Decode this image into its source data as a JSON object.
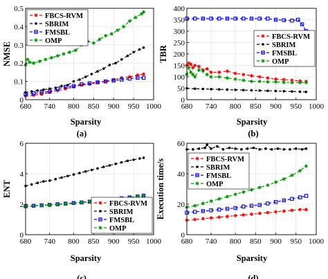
{
  "chart_data": [
    {
      "type": "line",
      "panel_label": "(a)",
      "xlabel": "Sparsity",
      "ylabel": "NMSE",
      "xlim": [
        680,
        1000
      ],
      "ylim": [
        0,
        0.5
      ],
      "xticks": [
        680,
        740,
        800,
        850,
        900,
        950,
        1000
      ],
      "yticks": [
        0,
        0.1,
        0.2,
        0.3,
        0.4,
        0.5
      ],
      "ytick_labels": [
        "0",
        "0.1",
        "0.2",
        "0.3",
        "0.4",
        "0.5"
      ],
      "grid": true,
      "legend": "top-left",
      "series": [
        {
          "name": "FBCS-RVM",
          "color": "#ff0000",
          "dash": "4,3",
          "marker": "star",
          "x": [
            680,
            700,
            720,
            740,
            760,
            780,
            800,
            820,
            840,
            860,
            880,
            900,
            920,
            940,
            960,
            975
          ],
          "values": [
            0.02,
            0.025,
            0.03,
            0.04,
            0.05,
            0.06,
            0.07,
            0.08,
            0.085,
            0.095,
            0.1,
            0.11,
            0.12,
            0.125,
            0.135,
            0.14
          ]
        },
        {
          "name": "SBRIM",
          "color": "#000000",
          "dash": "4,3",
          "marker": "dot",
          "x": [
            680,
            695,
            710,
            725,
            740,
            755,
            770,
            785,
            800,
            815,
            830,
            845,
            860,
            875,
            890,
            905,
            920,
            935,
            950,
            965,
            975
          ],
          "values": [
            0.04,
            0.045,
            0.05,
            0.055,
            0.06,
            0.065,
            0.075,
            0.08,
            0.1,
            0.11,
            0.125,
            0.14,
            0.155,
            0.17,
            0.19,
            0.2,
            0.22,
            0.24,
            0.26,
            0.275,
            0.285
          ]
        },
        {
          "name": "FMSBL",
          "color": "#0000ff",
          "dash": "4,3",
          "marker": "square",
          "x": [
            680,
            700,
            720,
            740,
            760,
            780,
            800,
            820,
            840,
            860,
            880,
            900,
            920,
            940,
            960,
            975
          ],
          "values": [
            0.03,
            0.035,
            0.04,
            0.045,
            0.06,
            0.07,
            0.075,
            0.085,
            0.09,
            0.095,
            0.1,
            0.105,
            0.11,
            0.115,
            0.12,
            0.12
          ]
        },
        {
          "name": "OMP",
          "color": "#009900",
          "dash": "4,3",
          "marker": "star",
          "x": [
            680,
            685,
            690,
            700,
            715,
            730,
            745,
            760,
            775,
            790,
            805,
            820,
            835,
            850,
            865,
            880,
            895,
            910,
            925,
            940,
            955,
            970,
            975
          ],
          "values": [
            0.19,
            0.22,
            0.205,
            0.2,
            0.21,
            0.22,
            0.23,
            0.24,
            0.25,
            0.26,
            0.27,
            0.3,
            0.32,
            0.31,
            0.33,
            0.35,
            0.36,
            0.38,
            0.4,
            0.43,
            0.45,
            0.47,
            0.48
          ]
        }
      ]
    },
    {
      "type": "line",
      "panel_label": "(b)",
      "xlabel": "Sparsity",
      "ylabel": "TBR",
      "xlim": [
        680,
        1000
      ],
      "ylim": [
        0,
        400
      ],
      "xticks": [
        680,
        740,
        800,
        850,
        900,
        950,
        1000
      ],
      "yticks": [
        0,
        50,
        100,
        150,
        200,
        250,
        300,
        350,
        400
      ],
      "ytick_labels": [
        "0",
        "50",
        "100",
        "150",
        "200",
        "250",
        "300",
        "350",
        "400"
      ],
      "grid": true,
      "legend": "right",
      "series": [
        {
          "name": "FBCS-RVM",
          "color": "#ff0000",
          "dash": "4,3",
          "marker": "star",
          "x": [
            680,
            685,
            690,
            695,
            700,
            710,
            720,
            730,
            740,
            760,
            780,
            800,
            820,
            840,
            860,
            880,
            900,
            920,
            940,
            960,
            975
          ],
          "values": [
            150,
            160,
            155,
            140,
            150,
            145,
            130,
            135,
            120,
            120,
            125,
            115,
            110,
            105,
            100,
            95,
            90,
            88,
            85,
            82,
            80
          ]
        },
        {
          "name": "SBRIM",
          "color": "#000000",
          "dash": "4,3",
          "marker": "dot",
          "x": [
            680,
            700,
            720,
            740,
            760,
            780,
            800,
            820,
            840,
            860,
            880,
            900,
            920,
            940,
            960,
            975
          ],
          "values": [
            50,
            48,
            47,
            46,
            45,
            44,
            43,
            42,
            41,
            40,
            39,
            38,
            37,
            36,
            35,
            34
          ]
        },
        {
          "name": "FMSBL",
          "color": "#0000ff",
          "dash": "4,3",
          "marker": "square",
          "x": [
            680,
            700,
            720,
            740,
            760,
            780,
            800,
            820,
            840,
            860,
            880,
            900,
            920,
            940,
            955,
            965,
            975
          ],
          "values": [
            355,
            355,
            355,
            355,
            355,
            355,
            355,
            355,
            355,
            355,
            355,
            350,
            348,
            346,
            350,
            330,
            300
          ]
        },
        {
          "name": "OMP",
          "color": "#009900",
          "dash": "4,3",
          "marker": "star",
          "x": [
            680,
            685,
            690,
            695,
            700,
            710,
            720,
            730,
            740,
            760,
            780,
            800,
            820,
            840,
            860,
            880,
            900,
            920,
            940,
            960,
            975
          ],
          "values": [
            110,
            140,
            120,
            110,
            100,
            130,
            125,
            110,
            100,
            100,
            95,
            90,
            85,
            80,
            80,
            78,
            78,
            76,
            75,
            75,
            75
          ]
        }
      ]
    },
    {
      "type": "line",
      "panel_label": "(c)",
      "xlabel": "Sparsity",
      "ylabel": "ENT",
      "xlim": [
        680,
        1000
      ],
      "ylim": [
        0,
        6
      ],
      "xticks": [
        680,
        740,
        800,
        850,
        900,
        950,
        1000
      ],
      "yticks": [
        0,
        2,
        4,
        6
      ],
      "ytick_labels": [
        "0",
        "2",
        "4",
        "6"
      ],
      "grid": true,
      "legend": "bottom-right",
      "series": [
        {
          "name": "FBCS-RVM",
          "color": "#ff0000",
          "dash": "4,3",
          "marker": "star",
          "x": [
            680,
            700,
            720,
            740,
            760,
            780,
            800,
            820,
            840,
            860,
            880,
            900,
            920,
            940,
            960,
            975
          ],
          "values": [
            1.85,
            1.88,
            1.92,
            1.95,
            1.98,
            2.02,
            2.06,
            2.1,
            2.15,
            2.2,
            2.26,
            2.31,
            2.37,
            2.43,
            2.49,
            2.55
          ]
        },
        {
          "name": "SBRIM",
          "color": "#000000",
          "dash": "4,3",
          "marker": "dot",
          "x": [
            680,
            695,
            710,
            725,
            740,
            755,
            770,
            785,
            800,
            815,
            830,
            845,
            860,
            875,
            890,
            905,
            920,
            935,
            950,
            965,
            975
          ],
          "values": [
            3.2,
            3.3,
            3.4,
            3.5,
            3.55,
            3.65,
            3.75,
            3.85,
            3.95,
            4.05,
            4.15,
            4.25,
            4.35,
            4.45,
            4.55,
            4.65,
            4.75,
            4.85,
            4.92,
            5.0,
            5.05
          ]
        },
        {
          "name": "FMSBL",
          "color": "#0000ff",
          "dash": "4,3",
          "marker": "square",
          "x": [
            680,
            700,
            720,
            740,
            760,
            780,
            800,
            820,
            840,
            860,
            880,
            900,
            920,
            940,
            960,
            975
          ],
          "values": [
            1.87,
            1.9,
            1.93,
            1.96,
            2.0,
            2.04,
            2.08,
            2.12,
            2.17,
            2.22,
            2.28,
            2.33,
            2.39,
            2.45,
            2.51,
            2.57
          ]
        },
        {
          "name": "OMP",
          "color": "#009900",
          "dash": "4,3",
          "marker": "star",
          "x": [
            680,
            700,
            720,
            740,
            760,
            780,
            800,
            820,
            840,
            860,
            880,
            900,
            920,
            940,
            960,
            975
          ],
          "values": [
            1.86,
            1.89,
            1.92,
            1.95,
            1.99,
            2.03,
            2.07,
            2.11,
            2.16,
            2.21,
            2.27,
            2.32,
            2.38,
            2.44,
            2.5,
            2.56
          ]
        }
      ]
    },
    {
      "type": "line",
      "panel_label": "(d)",
      "xlabel": "Sparsity",
      "ylabel": "Execution time/s",
      "xlim": [
        680,
        1000
      ],
      "ylim": [
        0,
        60
      ],
      "xticks": [
        680,
        740,
        800,
        850,
        900,
        950,
        1000
      ],
      "yticks": [
        0,
        20,
        40,
        60
      ],
      "ytick_labels": [
        "0",
        "20",
        "40",
        "60"
      ],
      "grid": true,
      "legend": "top-left",
      "series": [
        {
          "name": "FBCS-RVM",
          "color": "#ff0000",
          "dash": "4,3",
          "marker": "star",
          "x": [
            680,
            700,
            720,
            740,
            760,
            780,
            800,
            820,
            840,
            860,
            880,
            900,
            920,
            940,
            960,
            975
          ],
          "values": [
            9.5,
            10,
            10.5,
            11,
            11.5,
            12,
            12.5,
            13,
            13.5,
            14,
            14.5,
            15,
            15.5,
            16,
            16.5,
            16.5
          ]
        },
        {
          "name": "SBRIM",
          "color": "#000000",
          "dash": "4,3",
          "marker": "dot",
          "x": [
            680,
            695,
            710,
            725,
            730,
            740,
            755,
            770,
            785,
            800,
            815,
            830,
            845,
            860,
            875,
            890,
            905,
            920,
            935,
            950,
            965,
            975
          ],
          "values": [
            56,
            56,
            56.5,
            57,
            59,
            56.5,
            58,
            56,
            57,
            56.5,
            56,
            56.5,
            57,
            56,
            56.5,
            56,
            56.5,
            56,
            56,
            56.5,
            56,
            56.5
          ]
        },
        {
          "name": "FMSBL",
          "color": "#0000ff",
          "dash": "4,3",
          "marker": "square",
          "x": [
            680,
            700,
            720,
            740,
            760,
            780,
            800,
            820,
            840,
            860,
            880,
            900,
            920,
            940,
            960,
            975
          ],
          "values": [
            14.5,
            15,
            15.5,
            16,
            16.5,
            17,
            17.5,
            18.5,
            19,
            19.5,
            20.5,
            21.5,
            22.5,
            23.5,
            24.5,
            25.5
          ]
        },
        {
          "name": "OMP",
          "color": "#009900",
          "dash": "4,3",
          "marker": "star",
          "x": [
            680,
            700,
            720,
            740,
            760,
            780,
            800,
            820,
            840,
            860,
            880,
            900,
            920,
            940,
            960,
            975
          ],
          "values": [
            18,
            19,
            20.5,
            22,
            23.5,
            25,
            26.5,
            28,
            29.5,
            31,
            32.5,
            34.5,
            36.5,
            39,
            42,
            45
          ]
        }
      ]
    }
  ]
}
